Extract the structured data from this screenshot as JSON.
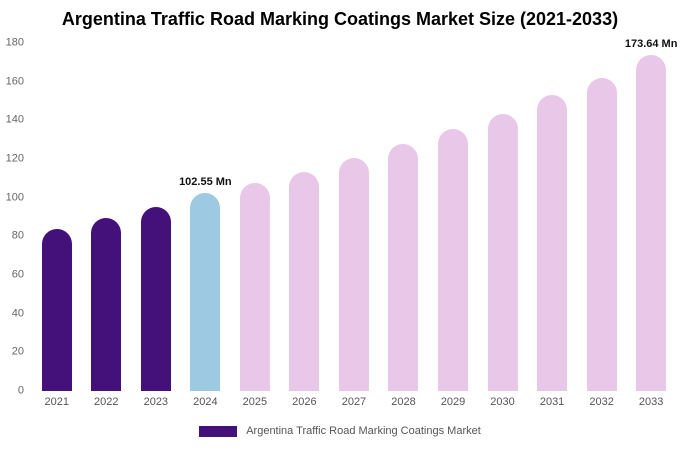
{
  "page": {
    "title": "Argentina Traffic Road Marking Coatings Market Size (2021-2033)"
  },
  "legend": {
    "label": "Argentina Traffic Road Marking Coatings Market",
    "swatch_color": "#44107A"
  },
  "chart_data": {
    "type": "bar",
    "title": "Argentina Traffic Road Marking Coatings Market Size (2021-2033)",
    "unit": "Mn",
    "categories": [
      "2021",
      "2022",
      "2023",
      "2024",
      "2025",
      "2026",
      "2027",
      "2028",
      "2029",
      "2030",
      "2031",
      "2032",
      "2033"
    ],
    "values": [
      84,
      89.5,
      95,
      102.55,
      107.5,
      113.5,
      120.5,
      128,
      135.5,
      143.5,
      153,
      162,
      173.64
    ],
    "bar_colors": [
      "#44107A",
      "#44107A",
      "#44107A",
      "#9EC9E3",
      "#E9C7E9",
      "#E9C7E9",
      "#E9C7E9",
      "#E9C7E9",
      "#E9C7E9",
      "#E9C7E9",
      "#E9C7E9",
      "#E9C7E9",
      "#E9C7E9"
    ],
    "data_labels": {
      "3": "102.55 Mn",
      "12": "173.64 Mn"
    },
    "xlabel": "",
    "ylabel": "",
    "ylim": [
      0,
      180
    ],
    "ytick_step": 20,
    "grid": false,
    "legend_position": "bottom"
  }
}
